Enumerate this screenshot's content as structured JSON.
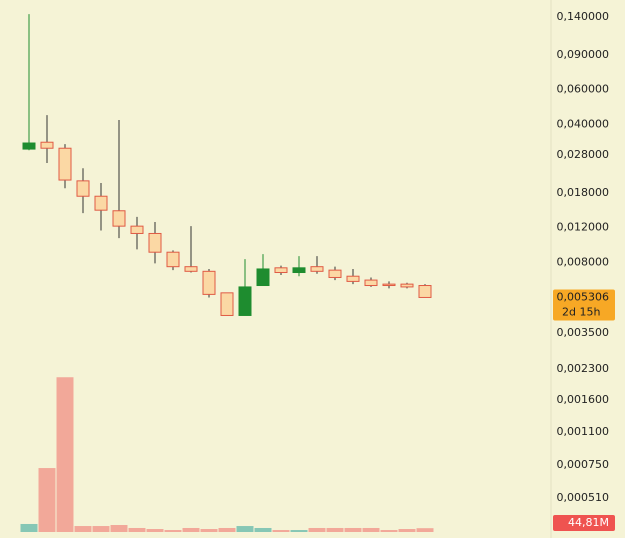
{
  "chart_data": {
    "type": "candlestick",
    "log_scale": true,
    "open": [
      0.03,
      0.0325,
      0.0303,
      0.0207,
      0.0173,
      0.0146,
      0.0122,
      0.0112,
      0.009,
      0.0076,
      0.0072,
      0.0056,
      0.0043,
      0.0061,
      0.0075,
      0.0071,
      0.0076,
      0.0073,
      0.0068,
      0.0065,
      0.0062,
      0.0062,
      0.0061
    ],
    "high": [
      0.145,
      0.0446,
      0.0318,
      0.024,
      0.0202,
      0.0421,
      0.0136,
      0.0128,
      0.0092,
      0.0122,
      0.0074,
      0.0056,
      0.0083,
      0.0088,
      0.0077,
      0.0086,
      0.0086,
      0.0076,
      0.0074,
      0.0067,
      0.0064,
      0.0063,
      0.0062
    ],
    "low": [
      0.0296,
      0.0255,
      0.019,
      0.0142,
      0.0116,
      0.0106,
      0.0093,
      0.0079,
      0.0073,
      0.0071,
      0.0053,
      0.0043,
      0.0043,
      0.0061,
      0.0069,
      0.0068,
      0.007,
      0.0065,
      0.0062,
      0.006,
      0.0059,
      0.0059,
      0.0053
    ],
    "close": [
      0.0322,
      0.0303,
      0.0209,
      0.0173,
      0.0147,
      0.0122,
      0.0112,
      0.009,
      0.0076,
      0.0072,
      0.0055,
      0.0043,
      0.006,
      0.0074,
      0.0071,
      0.0075,
      0.0072,
      0.0067,
      0.0064,
      0.0061,
      0.0061,
      0.006,
      0.005306
    ],
    "volume": [
      94,
      750,
      1815,
      70,
      70,
      82,
      47,
      35,
      23,
      47,
      35,
      47,
      70,
      47,
      23,
      23,
      47,
      47,
      47,
      47,
      23,
      35,
      44.81
    ],
    "ylim": [
      0.00032,
      0.171
    ],
    "yticks": [
      {
        "value": 0.14,
        "label": "0,140000"
      },
      {
        "value": 0.09,
        "label": "0,090000"
      },
      {
        "value": 0.06,
        "label": "0,060000"
      },
      {
        "value": 0.04,
        "label": "0,040000"
      },
      {
        "value": 0.028,
        "label": "0,028000"
      },
      {
        "value": 0.018,
        "label": "0,018000"
      },
      {
        "value": 0.012,
        "label": "0,012000"
      },
      {
        "value": 0.008,
        "label": "0,008000"
      },
      {
        "value": 0.0035,
        "label": "0,003500"
      },
      {
        "value": 0.0023,
        "label": "0,002300"
      },
      {
        "value": 0.0016,
        "label": "0,001600"
      },
      {
        "value": 0.0011,
        "label": "0,001100"
      },
      {
        "value": 0.00075,
        "label": "0,000750"
      },
      {
        "value": 0.00051,
        "label": "0,000510"
      }
    ],
    "volume_ylim": [
      0,
      1900
    ],
    "last_close_label": "0,005306",
    "countdown": "2d 15h",
    "last_volume_label": "44,81M",
    "up_color": "#1e8c2f",
    "down_fill": "#fbd8a4",
    "down_border": "#e05a44",
    "volume_up_color": "#86c7b5",
    "volume_down_color": "#f2a899",
    "price_label_color": "#f7a825",
    "volume_label_color": "#ef5350"
  }
}
